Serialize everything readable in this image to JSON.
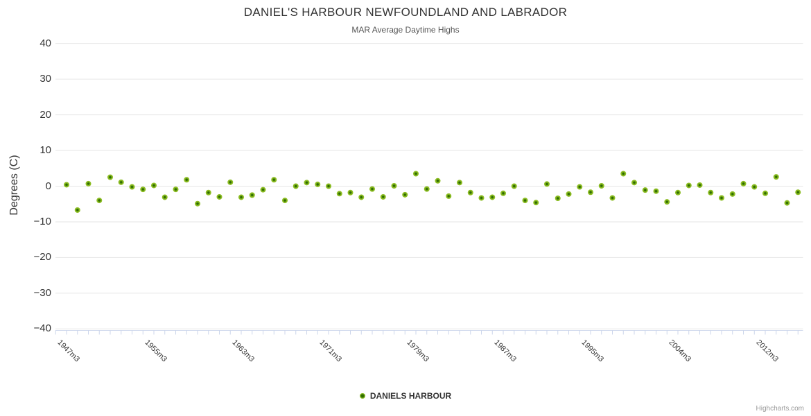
{
  "header": {
    "title": "DANIEL'S HARBOUR NEWFOUNDLAND AND LABRADOR",
    "subtitle": "MAR Average Daytime Highs"
  },
  "legend": {
    "series_label": "DANIELS HARBOUR",
    "marker_color": "#8bbc21"
  },
  "credits": {
    "label": "Highcharts.com"
  },
  "colors": {
    "marker_outer": "#8bbc21",
    "marker_inner": "#2f6d00",
    "gridline": "#e6e6e6",
    "axis_line": "#ccd6eb",
    "tick": "#ccd6eb",
    "title_text": "#333333",
    "subtitle_text": "#555555",
    "axis_label_text": "#333333",
    "credits_text": "#999999"
  },
  "chart_data": {
    "type": "scatter",
    "title": "DANIEL'S HARBOUR NEWFOUNDLAND AND LABRADOR",
    "subtitle": "MAR Average Daytime Highs",
    "xlabel": "",
    "ylabel": "Degrees (C)",
    "ylim": [
      -40,
      40
    ],
    "y_ticks": [
      -40,
      -30,
      -20,
      -10,
      0,
      10,
      20,
      30,
      40
    ],
    "grid": true,
    "legend_position": "bottom-center",
    "x_label_step": 8,
    "x_ticks_shown": [
      "1947m3",
      "1955m3",
      "1963m3",
      "1971m3",
      "1979m3",
      "1987m3",
      "1995m3",
      "2004m3",
      "2012m3"
    ],
    "categories": [
      "1947m3",
      "1948m3",
      "1949m3",
      "1950m3",
      "1951m3",
      "1952m3",
      "1953m3",
      "1954m3",
      "1955m3",
      "1956m3",
      "1957m3",
      "1958m3",
      "1959m3",
      "1960m3",
      "1961m3",
      "1962m3",
      "1963m3",
      "1964m3",
      "1965m3",
      "1966m3",
      "1967m3",
      "1968m3",
      "1969m3",
      "1970m3",
      "1971m3",
      "1972m3",
      "1973m3",
      "1974m3",
      "1975m3",
      "1976m3",
      "1977m3",
      "1978m3",
      "1979m3",
      "1980m3",
      "1981m3",
      "1982m3",
      "1983m3",
      "1984m3",
      "1985m3",
      "1986m3",
      "1987m3",
      "1988m3",
      "1989m3",
      "1990m3",
      "1991m3",
      "1992m3",
      "1993m3",
      "1994m3",
      "1995m3",
      "1996m3",
      "1997m3",
      "1998m3",
      "1999m3",
      "2000m3",
      "2001m3",
      "2002m3",
      "2004m3",
      "2005m3",
      "2006m3",
      "2007m3",
      "2008m3",
      "2009m3",
      "2010m3",
      "2011m3",
      "2012m3",
      "2013m3",
      "2014m3",
      "2015m3"
    ],
    "series": [
      {
        "name": "DANIELS HARBOUR",
        "color": "#8bbc21",
        "values": [
          0.4,
          -6.7,
          0.7,
          -4.0,
          2.5,
          1.1,
          -0.2,
          -0.9,
          0.2,
          -3.1,
          -0.9,
          1.8,
          -4.9,
          -1.8,
          -3.0,
          1.1,
          -3.1,
          -2.5,
          -1.0,
          1.8,
          -4.0,
          0.0,
          1.0,
          0.5,
          0.0,
          -2.1,
          -1.8,
          -3.1,
          -0.8,
          -3.0,
          0.1,
          -2.4,
          3.5,
          -0.8,
          1.5,
          -2.8,
          1.0,
          -1.8,
          -3.3,
          -3.1,
          -2.0,
          0.0,
          -4.0,
          -4.6,
          0.6,
          -3.4,
          -2.2,
          -0.2,
          -1.7,
          0.1,
          -3.3,
          3.5,
          1.0,
          -1.1,
          -1.4,
          -4.4,
          -1.8,
          0.2,
          0.3,
          -1.8,
          -3.3,
          -2.2,
          0.7,
          -0.2,
          -2.0,
          2.6,
          -4.7,
          -1.7
        ]
      }
    ]
  }
}
